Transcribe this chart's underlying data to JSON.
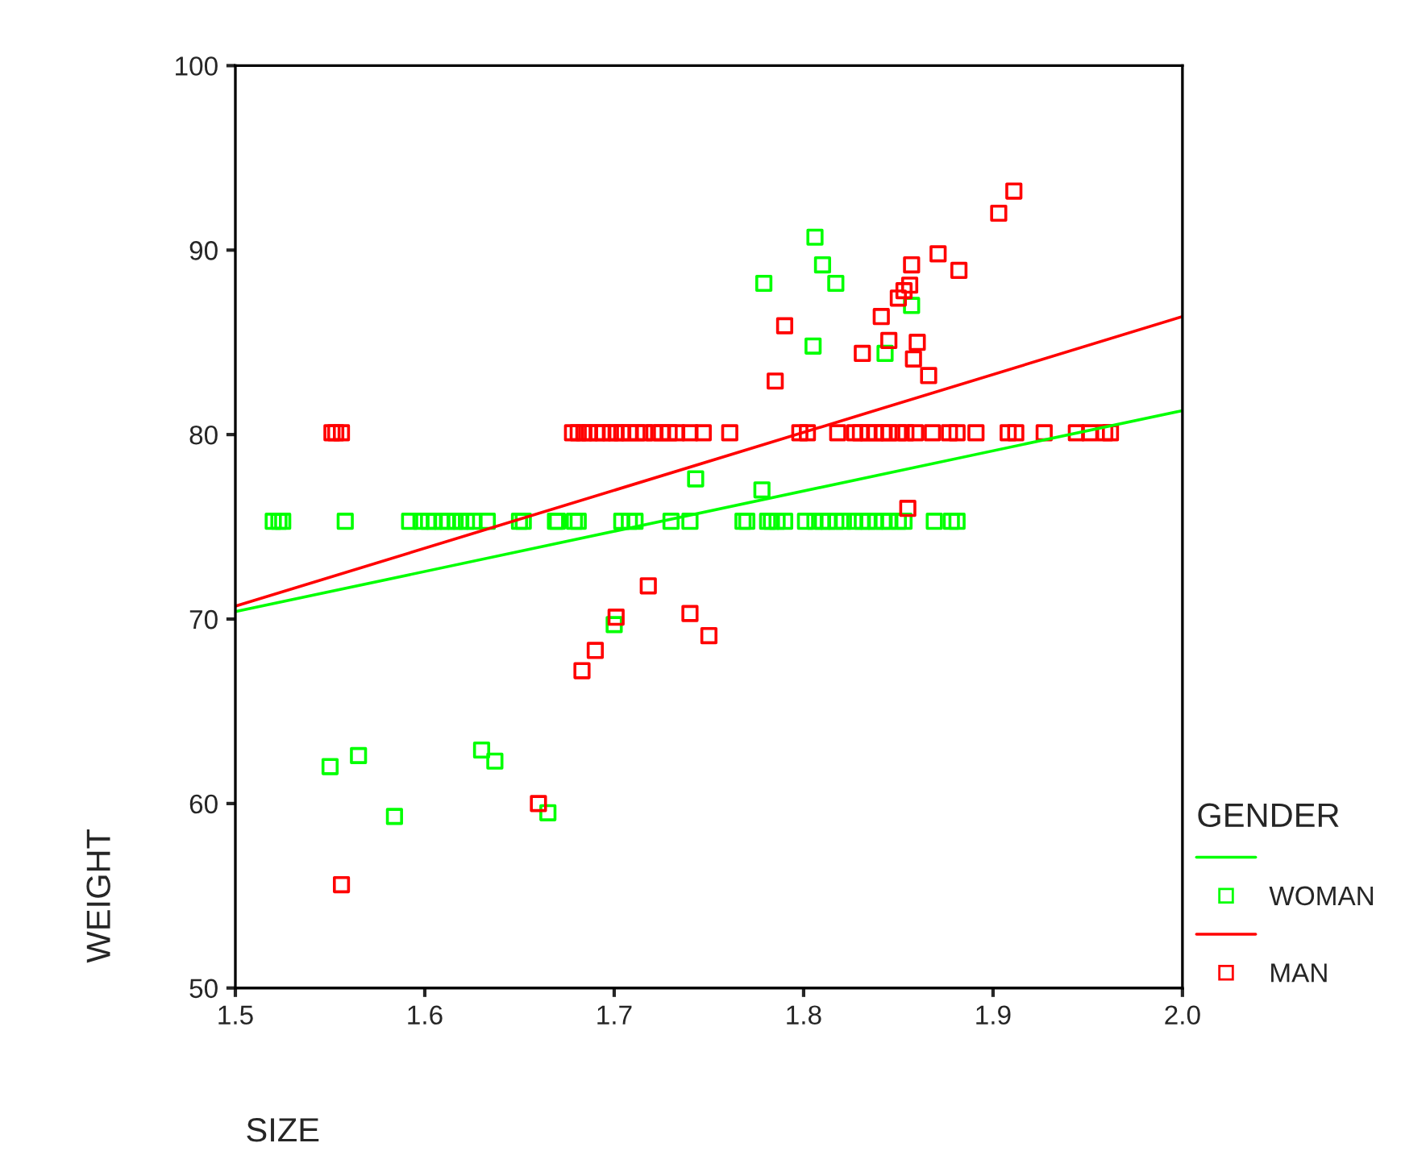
{
  "chart_data": {
    "type": "scatter",
    "xlabel": "SIZE",
    "ylabel": "WEIGHT",
    "legend_title": "GENDER",
    "legend": "right",
    "grid": false,
    "marker": "square",
    "xlim": [
      1.5,
      2.0
    ],
    "xticks": [
      {
        "value": 1.5,
        "label": "1.5"
      },
      {
        "value": 1.6,
        "label": "1.6"
      },
      {
        "value": 1.7,
        "label": "1.7"
      },
      {
        "value": 1.8,
        "label": "1.8"
      },
      {
        "value": 1.9,
        "label": "1.9"
      },
      {
        "value": 2.0,
        "label": "2.0"
      }
    ],
    "ylim": [
      50,
      100
    ],
    "yticks": [
      50,
      60,
      70,
      80,
      90,
      100
    ],
    "series": [
      {
        "type": "line",
        "marker": "none",
        "color": "#00ff00",
        "x": [
          1.5,
          2.0
        ],
        "values": [
          70.4,
          81.3
        ]
      },
      {
        "name": "WOMAN",
        "color": "#00ff00",
        "x": [
          1.52,
          1.523,
          1.525,
          1.558,
          1.592,
          1.598,
          1.602,
          1.605,
          1.609,
          1.612,
          1.616,
          1.619,
          1.622,
          1.626,
          1.633,
          1.65,
          1.652,
          1.669,
          1.67,
          1.679,
          1.681,
          1.704,
          1.708,
          1.711,
          1.73,
          1.74,
          1.768,
          1.77,
          1.781,
          1.783,
          1.786,
          1.79,
          1.801,
          1.806,
          1.81,
          1.813,
          1.817,
          1.821,
          1.827,
          1.831,
          1.834,
          1.838,
          1.842,
          1.845,
          1.85,
          1.853,
          1.869,
          1.878,
          1.881,
          1.55,
          1.565,
          1.584,
          1.63,
          1.637,
          1.665,
          1.7,
          1.743,
          1.778,
          1.779,
          1.806,
          1.81,
          1.817,
          1.805,
          1.843,
          1.857
        ],
        "values": [
          75.3,
          75.3,
          75.3,
          75.3,
          75.3,
          75.3,
          75.3,
          75.3,
          75.3,
          75.3,
          75.3,
          75.3,
          75.3,
          75.3,
          75.3,
          75.3,
          75.3,
          75.3,
          75.3,
          75.3,
          75.3,
          75.3,
          75.3,
          75.3,
          75.3,
          75.3,
          75.3,
          75.3,
          75.3,
          75.3,
          75.3,
          75.3,
          75.3,
          75.3,
          75.3,
          75.3,
          75.3,
          75.3,
          75.3,
          75.3,
          75.3,
          75.3,
          75.3,
          75.3,
          75.3,
          75.3,
          75.3,
          75.3,
          75.3,
          62,
          62.6,
          59.3,
          62.9,
          62.3,
          59.5,
          69.7,
          77.6,
          77,
          88.2,
          90.7,
          89.2,
          88.2,
          84.8,
          84.4,
          87
        ]
      },
      {
        "type": "line",
        "marker": "none",
        "color": "#ff0000",
        "x": [
          1.5,
          2.0
        ],
        "values": [
          70.7,
          86.4
        ]
      },
      {
        "name": "MAN",
        "color": "#ff0000",
        "x": [
          1.551,
          1.553,
          1.556,
          1.678,
          1.681,
          1.684,
          1.687,
          1.691,
          1.694,
          1.698,
          1.701,
          1.704,
          1.708,
          1.712,
          1.716,
          1.721,
          1.725,
          1.729,
          1.733,
          1.74,
          1.747,
          1.761,
          1.798,
          1.802,
          1.818,
          1.827,
          1.83,
          1.834,
          1.838,
          1.842,
          1.845,
          1.85,
          1.854,
          1.859,
          1.868,
          1.877,
          1.881,
          1.891,
          1.908,
          1.912,
          1.927,
          1.944,
          1.951,
          1.959,
          1.962,
          1.556,
          1.66,
          1.683,
          1.69,
          1.701,
          1.718,
          1.74,
          1.75,
          1.785,
          1.79,
          1.831,
          1.841,
          1.845,
          1.85,
          1.853,
          1.856,
          1.857,
          1.858,
          1.86,
          1.866,
          1.871,
          1.882,
          1.903,
          1.911,
          1.855
        ],
        "values": [
          80.1,
          80.1,
          80.1,
          80.1,
          80.1,
          80.1,
          80.1,
          80.1,
          80.1,
          80.1,
          80.1,
          80.1,
          80.1,
          80.1,
          80.1,
          80.1,
          80.1,
          80.1,
          80.1,
          80.1,
          80.1,
          80.1,
          80.1,
          80.1,
          80.1,
          80.1,
          80.1,
          80.1,
          80.1,
          80.1,
          80.1,
          80.1,
          80.1,
          80.1,
          80.1,
          80.1,
          80.1,
          80.1,
          80.1,
          80.1,
          80.1,
          80.1,
          80.1,
          80.1,
          80.1,
          55.6,
          60,
          67.2,
          68.3,
          70.1,
          71.8,
          70.3,
          69.1,
          82.9,
          85.9,
          84.4,
          86.4,
          85.1,
          87.4,
          87.8,
          88.1,
          89.2,
          84.1,
          85,
          83.2,
          89.8,
          88.9,
          92,
          93.2,
          76
        ]
      }
    ]
  }
}
